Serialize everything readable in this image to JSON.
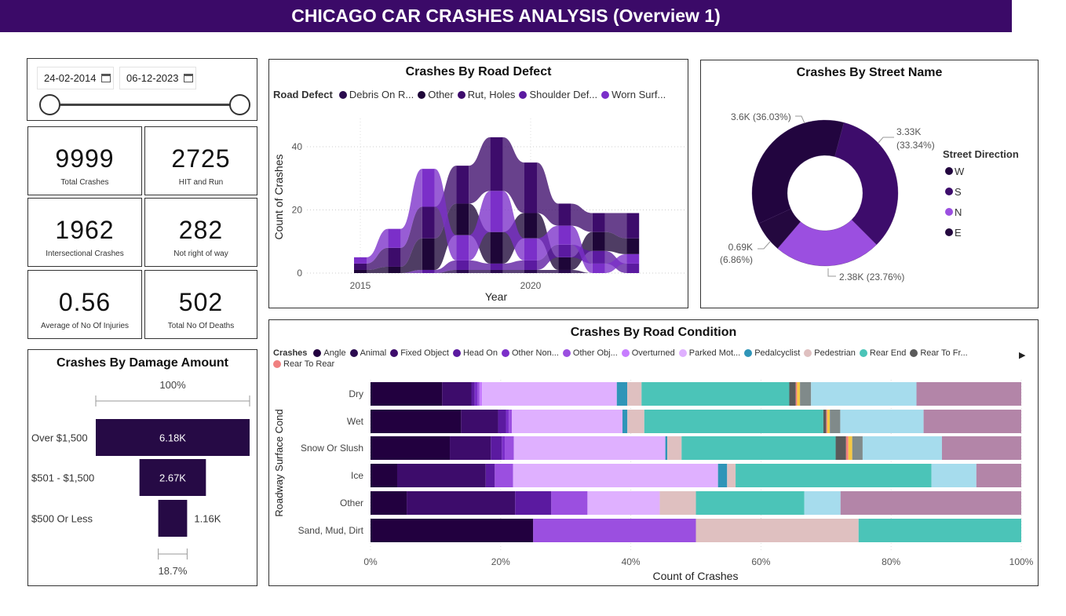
{
  "header": {
    "title": "CHICAGO CAR CRASHES ANALYSIS (Overview 1)",
    "color": "#3b0a68"
  },
  "date_slicer": {
    "start": "24-02-2014",
    "end": "06-12-2023",
    "icon": "calendar-icon"
  },
  "kpis": [
    {
      "value": "9999",
      "label": "Total Crashes"
    },
    {
      "value": "2725",
      "label": "HIT and Run"
    },
    {
      "value": "1962",
      "label": "Intersectional Crashes"
    },
    {
      "value": "282",
      "label": "Not right of way"
    },
    {
      "value": "0.56",
      "label": "Average of No Of Injuries"
    },
    {
      "value": "502",
      "label": "Total No Of Deaths"
    }
  ],
  "chart_data": [
    {
      "type": "area",
      "subtype": "ribbon",
      "title": "Crashes By Road Defect",
      "legend_title": "Road Defect",
      "legend_position": "top-left",
      "xlabel": "Year",
      "ylabel": "Count of Crashes",
      "x": [
        2015,
        2016,
        2017,
        2018,
        2019,
        2020,
        2021,
        2022,
        2023
      ],
      "xticks": [
        "2015",
        "2020"
      ],
      "yticks": [
        "0",
        "20",
        "40"
      ],
      "ylim": [
        0,
        50
      ],
      "grid": true,
      "series": [
        {
          "name": "Debris On R...",
          "color": "#2a0b4e",
          "values": [
            0,
            0,
            0,
            1,
            1,
            1,
            1,
            0,
            0
          ]
        },
        {
          "name": "Other",
          "color": "#1e0638",
          "values": [
            1,
            2,
            10,
            10,
            10,
            8,
            4,
            6,
            5
          ]
        },
        {
          "name": "Rut, Holes",
          "color": "#3d0c6b",
          "values": [
            2,
            6,
            10,
            12,
            17,
            16,
            7,
            6,
            8
          ]
        },
        {
          "name": "Shoulder Def...",
          "color": "#5b1aa0",
          "values": [
            0,
            0,
            1,
            3,
            2,
            3,
            4,
            4,
            3
          ]
        },
        {
          "name": "Worn Surf...",
          "color": "#7b2fc9",
          "values": [
            2,
            6,
            12,
            8,
            13,
            7,
            6,
            3,
            3
          ]
        }
      ]
    },
    {
      "type": "pie",
      "subtype": "donut",
      "title": "Crashes By Street Name",
      "legend_title": "Street Direction",
      "legend_position": "right",
      "slices": [
        {
          "name": "W",
          "value": 3.6,
          "percent": 36.03,
          "label": "3.6K (36.03%)",
          "color": "#22053f"
        },
        {
          "name": "S",
          "value": 3.33,
          "percent": 33.34,
          "label1": "3.33K",
          "label2": "(33.34%)",
          "color": "#3d0c6b"
        },
        {
          "name": "N",
          "value": 2.38,
          "percent": 23.76,
          "label": "2.38K (23.76%)",
          "color": "#9b4fe0"
        },
        {
          "name": "E",
          "value": 0.69,
          "percent": 6.86,
          "label1": "0.69K",
          "label2": "(6.86%)",
          "color": "#24083f"
        }
      ]
    },
    {
      "type": "bar",
      "subtype": "funnel",
      "title": "Crashes By Damage Amount",
      "categories": [
        "Over $1,500",
        "$501 - $1,500",
        "$500 Or Less"
      ],
      "values": [
        6.18,
        2.67,
        1.16
      ],
      "labels": [
        "6.18K",
        "2.67K",
        "1.16K"
      ],
      "top_percent": "100%",
      "bottom_percent": "18.7%",
      "color": "#260a45"
    },
    {
      "type": "bar",
      "subtype": "100% stacked horizontal",
      "title": "Crashes By Road Condition",
      "legend_title": "Crashes",
      "legend_position": "top-left",
      "xlabel": "Count of Crashes",
      "ylabel": "Roadway Surface Cond",
      "xticks": [
        "0%",
        "20%",
        "40%",
        "60%",
        "80%",
        "100%"
      ],
      "categories": [
        "Dry",
        "Wet",
        "Snow Or Slush",
        "Ice",
        "Other",
        "Sand, Mud, Dirt"
      ],
      "series": [
        {
          "name": "Angle",
          "color": "#22003f",
          "values": [
            11.0,
            13.9,
            12.2,
            4.1,
            5.56,
            25
          ]
        },
        {
          "name": "Animal",
          "color": "#2b0a50",
          "values": [
            0,
            0,
            0,
            0,
            0,
            0
          ]
        },
        {
          "name": "Fixed Object",
          "color": "#3d0c6b",
          "values": [
            4.5,
            5.7,
            6.3,
            13.6,
            16.67,
            0
          ]
        },
        {
          "name": "Head On",
          "color": "#5b1aa0",
          "values": [
            0.5,
            1.2,
            1.7,
            1.4,
            5.56,
            0
          ]
        },
        {
          "name": "Other Non...",
          "color": "#7b2fc9",
          "values": [
            0.45,
            0.45,
            0.45,
            0,
            0,
            0
          ]
        },
        {
          "name": "Other Obj...",
          "color": "#9b4fe0",
          "values": [
            0.3,
            0.45,
            1.4,
            2.8,
            5.56,
            25
          ]
        },
        {
          "name": "Overturned",
          "color": "#c77dff",
          "values": [
            0.4,
            0,
            0,
            0,
            0,
            0
          ]
        },
        {
          "name": "Parked Mot...",
          "color": "#dfb0ff",
          "values": [
            20.7,
            17.0,
            23.3,
            31.5,
            11.11,
            0
          ]
        },
        {
          "name": "Pedalcyclist",
          "color": "#2f95b8",
          "values": [
            1.6,
            0.75,
            0.3,
            1.4,
            0,
            0
          ]
        },
        {
          "name": "Pedestrian",
          "color": "#dfc0c0",
          "values": [
            2.2,
            2.6,
            2.2,
            1.3,
            5.56,
            25
          ]
        },
        {
          "name": "Rear End",
          "color": "#4bc4b8",
          "values": [
            22.7,
            27.5,
            23.7,
            30.1,
            16.67,
            25
          ]
        },
        {
          "name": "Rear To Fr...",
          "color": "#5a5a5a",
          "values": [
            1.0,
            0.45,
            1.6,
            0,
            0,
            0
          ]
        },
        {
          "name": "Rear To Rear",
          "color": "#f08080",
          "values": [
            0.2,
            0.15,
            0.35,
            0,
            0,
            0
          ]
        },
        {
          "color": "#f5c842",
          "values": [
            0.45,
            0.4,
            0.6,
            0,
            0,
            0
          ]
        },
        {
          "color": "#808a8a",
          "values": [
            1.7,
            1.6,
            1.6,
            0,
            0,
            0
          ]
        },
        {
          "color": "#a6dced",
          "values": [
            16.2,
            12.8,
            12.2,
            6.9,
            5.56,
            0
          ]
        },
        {
          "color": "#b385a8",
          "values": [
            16.1,
            15.0,
            12.2,
            6.9,
            27.78,
            0
          ]
        }
      ]
    }
  ]
}
